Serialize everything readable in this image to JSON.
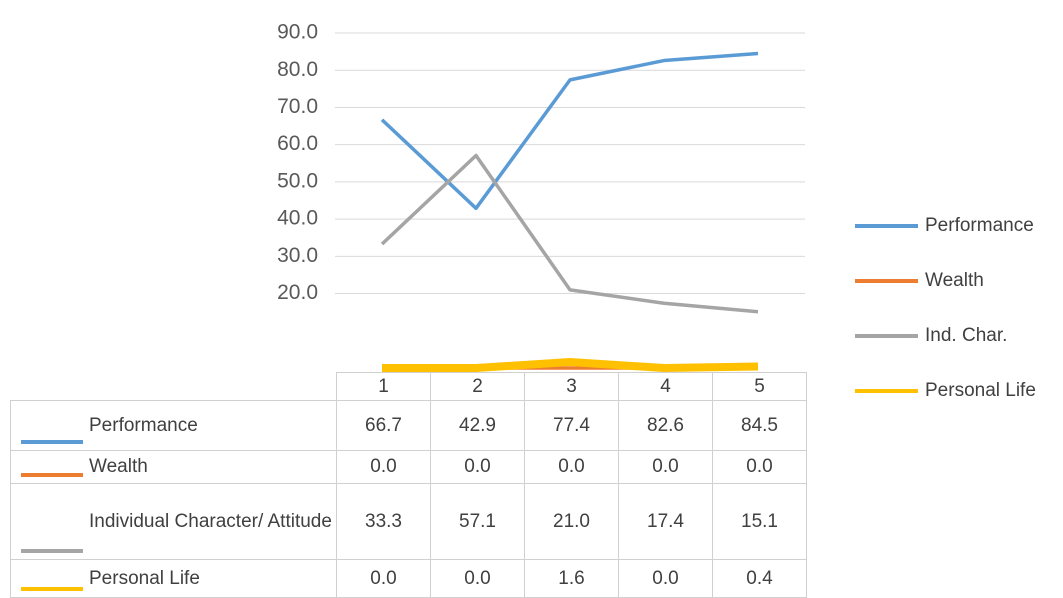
{
  "chart_data": {
    "type": "line",
    "categories": [
      "1",
      "2",
      "3",
      "4",
      "5"
    ],
    "ylim": [
      0,
      90
    ],
    "yticks": [
      {
        "value": 20,
        "label": "20.0"
      },
      {
        "value": 30,
        "label": "30.0"
      },
      {
        "value": 40,
        "label": "40.0"
      },
      {
        "value": 50,
        "label": "50.0"
      },
      {
        "value": 60,
        "label": "60.0"
      },
      {
        "value": 70,
        "label": "70.0"
      },
      {
        "value": 80,
        "label": "80.0"
      },
      {
        "value": 90,
        "label": "90.0"
      }
    ],
    "grid": true,
    "legend": "right",
    "series": [
      {
        "name": "Performance",
        "table_label": "Performance",
        "color": "#5b9bd5",
        "values": [
          66.7,
          42.9,
          77.4,
          82.6,
          84.5
        ],
        "value_labels": [
          "66.7",
          "42.9",
          "77.4",
          "82.6",
          "84.5"
        ]
      },
      {
        "name": "Wealth",
        "table_label": "Wealth",
        "color": "#ed7d31",
        "values": [
          0,
          0,
          0,
          0,
          0
        ],
        "value_labels": [
          "0.0",
          "0.0",
          "0.0",
          "0.0",
          "0.0"
        ]
      },
      {
        "name": "Ind. Char.",
        "table_label": "Individual Character/ Attitude",
        "color": "#a5a5a5",
        "values": [
          33.3,
          57.1,
          21.0,
          17.4,
          15.1
        ],
        "value_labels": [
          "33.3",
          "57.1",
          "21.0",
          "17.4",
          "15.1"
        ]
      },
      {
        "name": "Personal Life",
        "table_label": "Personal Life",
        "color": "#ffc000",
        "values": [
          0,
          0,
          1.6,
          0,
          0.4
        ],
        "value_labels": [
          "0.0",
          "0.0",
          "1.6",
          "0.0",
          "0.4"
        ]
      }
    ]
  }
}
